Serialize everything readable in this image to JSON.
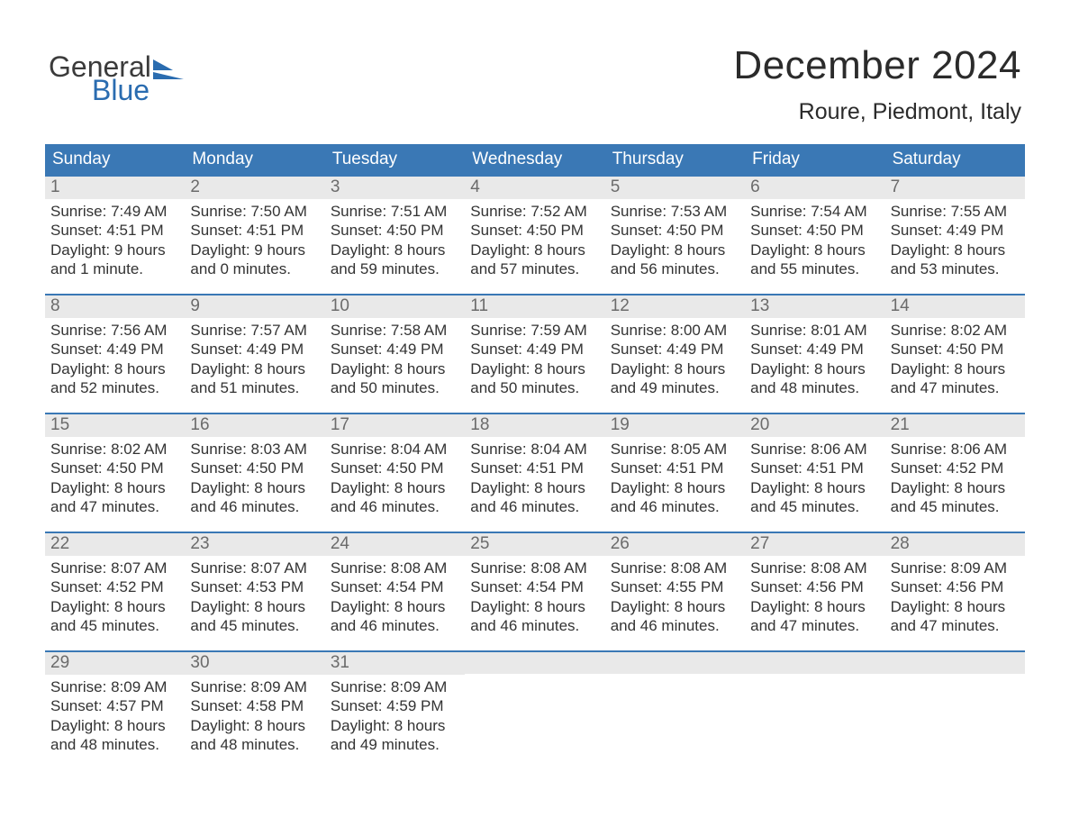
{
  "logo": {
    "text_top": "General",
    "text_bottom": "Blue",
    "top_color": "#3b3b3b",
    "bottom_color": "#2a6cb0",
    "triangle_color": "#2a6cb0"
  },
  "header": {
    "title": "December 2024",
    "location": "Roure, Piedmont, Italy"
  },
  "colors": {
    "header_bg": "#3a78b5",
    "header_fg": "#ffffff",
    "daynum_bg": "#e9e9e9",
    "daynum_fg": "#6b6b6b",
    "body_fg": "#333333",
    "week_border": "#3a78b5",
    "page_bg": "#ffffff"
  },
  "daysOfWeek": [
    "Sunday",
    "Monday",
    "Tuesday",
    "Wednesday",
    "Thursday",
    "Friday",
    "Saturday"
  ],
  "weeks": [
    [
      {
        "n": "1",
        "sunrise": "Sunrise: 7:49 AM",
        "sunset": "Sunset: 4:51 PM",
        "dl1": "Daylight: 9 hours",
        "dl2": "and 1 minute."
      },
      {
        "n": "2",
        "sunrise": "Sunrise: 7:50 AM",
        "sunset": "Sunset: 4:51 PM",
        "dl1": "Daylight: 9 hours",
        "dl2": "and 0 minutes."
      },
      {
        "n": "3",
        "sunrise": "Sunrise: 7:51 AM",
        "sunset": "Sunset: 4:50 PM",
        "dl1": "Daylight: 8 hours",
        "dl2": "and 59 minutes."
      },
      {
        "n": "4",
        "sunrise": "Sunrise: 7:52 AM",
        "sunset": "Sunset: 4:50 PM",
        "dl1": "Daylight: 8 hours",
        "dl2": "and 57 minutes."
      },
      {
        "n": "5",
        "sunrise": "Sunrise: 7:53 AM",
        "sunset": "Sunset: 4:50 PM",
        "dl1": "Daylight: 8 hours",
        "dl2": "and 56 minutes."
      },
      {
        "n": "6",
        "sunrise": "Sunrise: 7:54 AM",
        "sunset": "Sunset: 4:50 PM",
        "dl1": "Daylight: 8 hours",
        "dl2": "and 55 minutes."
      },
      {
        "n": "7",
        "sunrise": "Sunrise: 7:55 AM",
        "sunset": "Sunset: 4:49 PM",
        "dl1": "Daylight: 8 hours",
        "dl2": "and 53 minutes."
      }
    ],
    [
      {
        "n": "8",
        "sunrise": "Sunrise: 7:56 AM",
        "sunset": "Sunset: 4:49 PM",
        "dl1": "Daylight: 8 hours",
        "dl2": "and 52 minutes."
      },
      {
        "n": "9",
        "sunrise": "Sunrise: 7:57 AM",
        "sunset": "Sunset: 4:49 PM",
        "dl1": "Daylight: 8 hours",
        "dl2": "and 51 minutes."
      },
      {
        "n": "10",
        "sunrise": "Sunrise: 7:58 AM",
        "sunset": "Sunset: 4:49 PM",
        "dl1": "Daylight: 8 hours",
        "dl2": "and 50 minutes."
      },
      {
        "n": "11",
        "sunrise": "Sunrise: 7:59 AM",
        "sunset": "Sunset: 4:49 PM",
        "dl1": "Daylight: 8 hours",
        "dl2": "and 50 minutes."
      },
      {
        "n": "12",
        "sunrise": "Sunrise: 8:00 AM",
        "sunset": "Sunset: 4:49 PM",
        "dl1": "Daylight: 8 hours",
        "dl2": "and 49 minutes."
      },
      {
        "n": "13",
        "sunrise": "Sunrise: 8:01 AM",
        "sunset": "Sunset: 4:49 PM",
        "dl1": "Daylight: 8 hours",
        "dl2": "and 48 minutes."
      },
      {
        "n": "14",
        "sunrise": "Sunrise: 8:02 AM",
        "sunset": "Sunset: 4:50 PM",
        "dl1": "Daylight: 8 hours",
        "dl2": "and 47 minutes."
      }
    ],
    [
      {
        "n": "15",
        "sunrise": "Sunrise: 8:02 AM",
        "sunset": "Sunset: 4:50 PM",
        "dl1": "Daylight: 8 hours",
        "dl2": "and 47 minutes."
      },
      {
        "n": "16",
        "sunrise": "Sunrise: 8:03 AM",
        "sunset": "Sunset: 4:50 PM",
        "dl1": "Daylight: 8 hours",
        "dl2": "and 46 minutes."
      },
      {
        "n": "17",
        "sunrise": "Sunrise: 8:04 AM",
        "sunset": "Sunset: 4:50 PM",
        "dl1": "Daylight: 8 hours",
        "dl2": "and 46 minutes."
      },
      {
        "n": "18",
        "sunrise": "Sunrise: 8:04 AM",
        "sunset": "Sunset: 4:51 PM",
        "dl1": "Daylight: 8 hours",
        "dl2": "and 46 minutes."
      },
      {
        "n": "19",
        "sunrise": "Sunrise: 8:05 AM",
        "sunset": "Sunset: 4:51 PM",
        "dl1": "Daylight: 8 hours",
        "dl2": "and 46 minutes."
      },
      {
        "n": "20",
        "sunrise": "Sunrise: 8:06 AM",
        "sunset": "Sunset: 4:51 PM",
        "dl1": "Daylight: 8 hours",
        "dl2": "and 45 minutes."
      },
      {
        "n": "21",
        "sunrise": "Sunrise: 8:06 AM",
        "sunset": "Sunset: 4:52 PM",
        "dl1": "Daylight: 8 hours",
        "dl2": "and 45 minutes."
      }
    ],
    [
      {
        "n": "22",
        "sunrise": "Sunrise: 8:07 AM",
        "sunset": "Sunset: 4:52 PM",
        "dl1": "Daylight: 8 hours",
        "dl2": "and 45 minutes."
      },
      {
        "n": "23",
        "sunrise": "Sunrise: 8:07 AM",
        "sunset": "Sunset: 4:53 PM",
        "dl1": "Daylight: 8 hours",
        "dl2": "and 45 minutes."
      },
      {
        "n": "24",
        "sunrise": "Sunrise: 8:08 AM",
        "sunset": "Sunset: 4:54 PM",
        "dl1": "Daylight: 8 hours",
        "dl2": "and 46 minutes."
      },
      {
        "n": "25",
        "sunrise": "Sunrise: 8:08 AM",
        "sunset": "Sunset: 4:54 PM",
        "dl1": "Daylight: 8 hours",
        "dl2": "and 46 minutes."
      },
      {
        "n": "26",
        "sunrise": "Sunrise: 8:08 AM",
        "sunset": "Sunset: 4:55 PM",
        "dl1": "Daylight: 8 hours",
        "dl2": "and 46 minutes."
      },
      {
        "n": "27",
        "sunrise": "Sunrise: 8:08 AM",
        "sunset": "Sunset: 4:56 PM",
        "dl1": "Daylight: 8 hours",
        "dl2": "and 47 minutes."
      },
      {
        "n": "28",
        "sunrise": "Sunrise: 8:09 AM",
        "sunset": "Sunset: 4:56 PM",
        "dl1": "Daylight: 8 hours",
        "dl2": "and 47 minutes."
      }
    ],
    [
      {
        "n": "29",
        "sunrise": "Sunrise: 8:09 AM",
        "sunset": "Sunset: 4:57 PM",
        "dl1": "Daylight: 8 hours",
        "dl2": "and 48 minutes."
      },
      {
        "n": "30",
        "sunrise": "Sunrise: 8:09 AM",
        "sunset": "Sunset: 4:58 PM",
        "dl1": "Daylight: 8 hours",
        "dl2": "and 48 minutes."
      },
      {
        "n": "31",
        "sunrise": "Sunrise: 8:09 AM",
        "sunset": "Sunset: 4:59 PM",
        "dl1": "Daylight: 8 hours",
        "dl2": "and 49 minutes."
      },
      null,
      null,
      null,
      null
    ]
  ]
}
